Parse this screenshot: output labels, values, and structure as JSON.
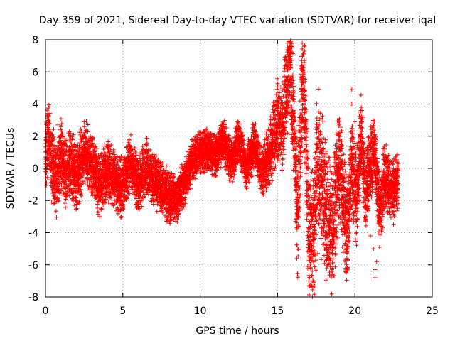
{
  "chart_data": {
    "type": "scatter",
    "title": "Day 359 of 2021, Sidereal Day-to-day VTEC variation (SDTVAR) for receiver iqal",
    "xlabel": "GPS time / hours",
    "ylabel": "SDTVAR / TECUs",
    "xlim": [
      0,
      25
    ],
    "ylim": [
      -8,
      8
    ],
    "xticks": [
      0,
      5,
      10,
      15,
      20,
      25
    ],
    "yticks": [
      -8,
      -6,
      -4,
      -2,
      0,
      2,
      4,
      6,
      8
    ],
    "grid": true,
    "marker": "+",
    "color": "#ff0000",
    "series": [
      {
        "name": "SDTVAR",
        "trend": [
          [
            0.0,
            1.0
          ],
          [
            0.2,
            2.0
          ],
          [
            0.4,
            0.5
          ],
          [
            0.7,
            -0.7
          ],
          [
            1.0,
            0.8
          ],
          [
            1.3,
            -0.3
          ],
          [
            1.6,
            0.6
          ],
          [
            2.0,
            -0.6
          ],
          [
            2.5,
            1.0
          ],
          [
            3.0,
            0.2
          ],
          [
            3.4,
            -1.0
          ],
          [
            4.0,
            0.0
          ],
          [
            4.5,
            -0.8
          ],
          [
            5.0,
            -1.2
          ],
          [
            5.5,
            0.5
          ],
          [
            6.0,
            -1.0
          ],
          [
            6.5,
            0.2
          ],
          [
            7.0,
            -0.8
          ],
          [
            7.5,
            -1.2
          ],
          [
            8.0,
            -1.8
          ],
          [
            8.5,
            -2.0
          ],
          [
            9.0,
            -0.8
          ],
          [
            9.5,
            0.5
          ],
          [
            10.0,
            1.0
          ],
          [
            10.5,
            1.2
          ],
          [
            11.0,
            0.8
          ],
          [
            11.5,
            1.8
          ],
          [
            12.0,
            0.3
          ],
          [
            12.5,
            1.8
          ],
          [
            13.0,
            0.0
          ],
          [
            13.5,
            1.5
          ],
          [
            14.0,
            -0.2
          ],
          [
            14.5,
            1.0
          ],
          [
            15.0,
            3.0
          ],
          [
            15.3,
            2.5
          ],
          [
            15.6,
            5.0
          ],
          [
            15.8,
            7.0
          ],
          [
            16.0,
            3.5
          ],
          [
            16.3,
            -3.0
          ],
          [
            16.6,
            5.5
          ],
          [
            16.8,
            3.0
          ],
          [
            17.0,
            -4.0
          ],
          [
            17.3,
            -4.8
          ],
          [
            17.6,
            1.0
          ],
          [
            18.0,
            -2.0
          ],
          [
            18.5,
            -4.2
          ],
          [
            19.0,
            0.5
          ],
          [
            19.5,
            -4.0
          ],
          [
            19.8,
            0.3
          ],
          [
            20.1,
            -2.0
          ],
          [
            20.4,
            2.0
          ],
          [
            20.7,
            -1.5
          ],
          [
            21.0,
            0.5
          ],
          [
            21.3,
            1.2
          ],
          [
            21.6,
            -3.0
          ],
          [
            21.9,
            -0.5
          ],
          [
            22.3,
            -1.2
          ],
          [
            22.8,
            -0.8
          ]
        ],
        "spread_hours": [
          [
            0,
            2.8
          ],
          [
            3,
            2.4
          ],
          [
            8,
            2.0
          ],
          [
            10,
            1.6
          ],
          [
            14,
            1.8
          ],
          [
            15,
            3.2
          ],
          [
            17.5,
            6.0
          ],
          [
            20,
            3.5
          ],
          [
            23,
            2.0
          ]
        ],
        "highlights": [
          [
            15.9,
            7.5
          ],
          [
            15.8,
            7.2
          ],
          [
            16.5,
            6.2
          ],
          [
            19.8,
            4.9
          ],
          [
            19.8,
            4.0
          ],
          [
            19.8,
            2.5
          ],
          [
            20.0,
            2.9
          ],
          [
            21.3,
            -6.3
          ],
          [
            21.3,
            -6.8
          ],
          [
            21.4,
            -5.8
          ],
          [
            21.2,
            -5.0
          ],
          [
            21.0,
            -4.2
          ],
          [
            17.4,
            -5.4
          ],
          [
            17.2,
            -5.2
          ],
          [
            17.6,
            -5.3
          ],
          [
            2.5,
            2.9
          ],
          [
            1.0,
            2.6
          ],
          [
            0.8,
            2.7
          ],
          [
            3.5,
            -3.0
          ],
          [
            3.4,
            -2.7
          ],
          [
            0.4,
            -2.1
          ],
          [
            22.5,
            -3.5
          ],
          [
            22.8,
            -2.2
          ]
        ]
      }
    ]
  }
}
